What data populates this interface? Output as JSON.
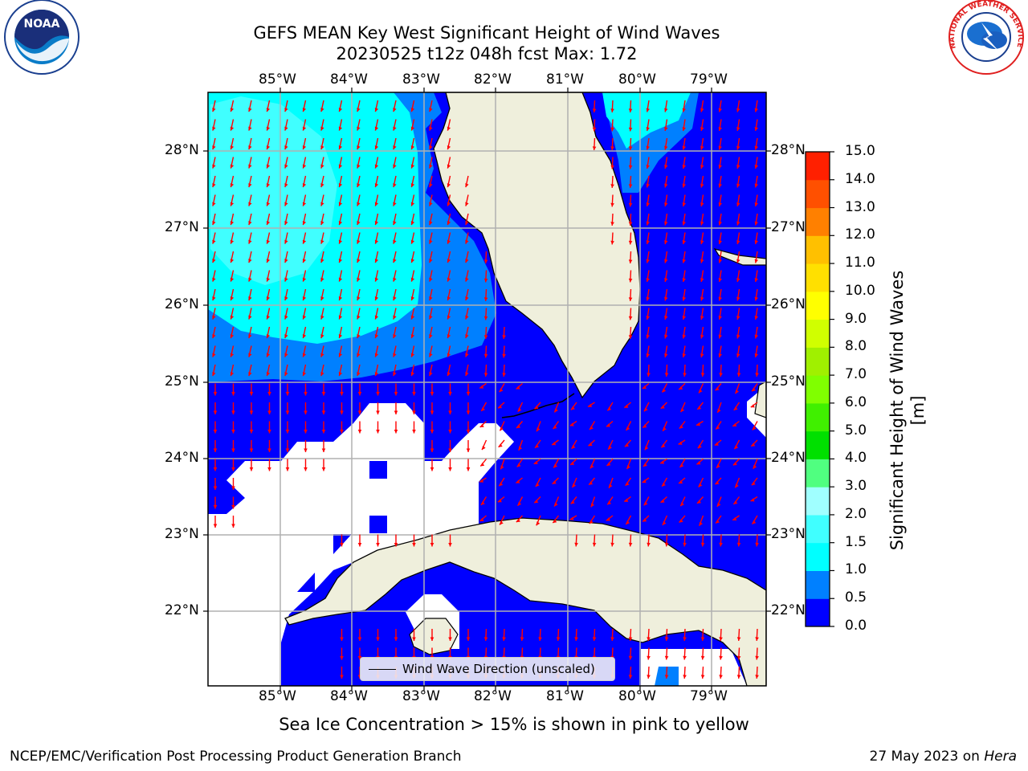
{
  "title": {
    "line1": "GEFS MEAN Key West Significant Height of Wind Waves",
    "line2": "20230525 t12z 048h fcst   Max: 1.72"
  },
  "map": {
    "lon_labels": [
      "85°W",
      "84°W",
      "83°W",
      "82°W",
      "81°W",
      "80°W",
      "79°W"
    ],
    "lat_labels": [
      "28°N",
      "27°N",
      "26°N",
      "25°N",
      "24°N",
      "23°N",
      "22°N"
    ],
    "legend_label": "Wind Wave Direction (unscaled)",
    "land_color": "#efefdc",
    "arrow_color": "#ff0000"
  },
  "colorbar": {
    "title": "Significant Height of Wind Waves [m]",
    "labels": [
      "0.0",
      "0.5",
      "1.0",
      "1.5",
      "2.0",
      "3.0",
      "4.0",
      "5.0",
      "6.0",
      "7.0",
      "8.0",
      "9.0",
      "10.0",
      "11.0",
      "12.0",
      "13.0",
      "14.0",
      "15.0"
    ],
    "colors": [
      "#0000ff",
      "#0080ff",
      "#00ffff",
      "#40ffff",
      "#a0ffff",
      "#50ff80",
      "#00e000",
      "#40f000",
      "#80ff00",
      "#a0f000",
      "#d0ff00",
      "#ffff00",
      "#ffe000",
      "#ffc000",
      "#ff8000",
      "#ff5000",
      "#ff2000",
      "#ff0000"
    ]
  },
  "footer": {
    "note": "Sea Ice Concentration > 15% is shown in pink to yellow",
    "credit_left": "NCEP/EMC/Verification Post Processing Product Generation Branch",
    "credit_date": "27 May 2023 on",
    "credit_host": "Hera"
  },
  "logos": {
    "noaa_text": "NOAA",
    "nws_text": "NATIONAL WEATHER SERVICE"
  }
}
